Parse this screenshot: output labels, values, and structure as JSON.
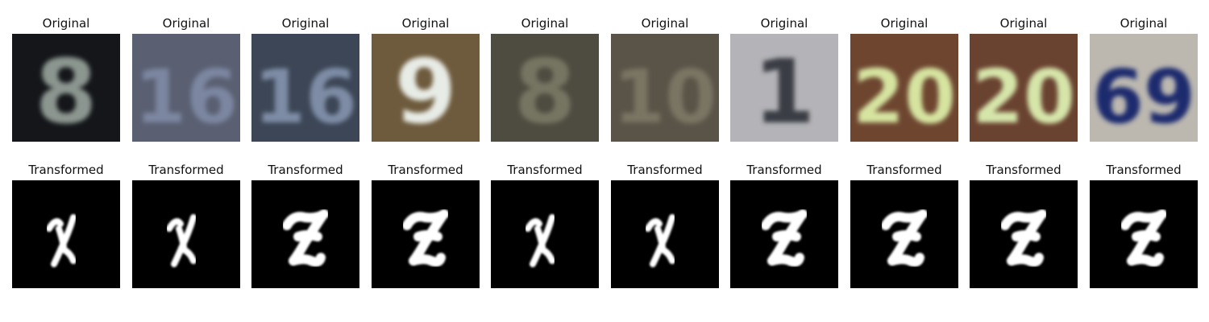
{
  "figure": {
    "original_label": "Original",
    "transformed_label": "Transformed",
    "samples": [
      {
        "original_digit": "8",
        "original_bg": "#14161a",
        "original_fg": "#8c9690",
        "transformed_label": "X"
      },
      {
        "original_digit": "16",
        "original_bg": "#5a6072",
        "original_fg": "#7c86a0",
        "transformed_label": "X"
      },
      {
        "original_digit": "16",
        "original_bg": "#3c4656",
        "original_fg": "#7e8ca6",
        "transformed_label": "Z"
      },
      {
        "original_digit": "9",
        "original_bg": "#6e5a3c",
        "original_fg": "#e8ece6",
        "transformed_label": "Z"
      },
      {
        "original_digit": "8",
        "original_bg": "#4e4c40",
        "original_fg": "#767462",
        "transformed_label": "X"
      },
      {
        "original_digit": "10",
        "original_bg": "#5a5448",
        "original_fg": "#7a7464",
        "transformed_label": "X"
      },
      {
        "original_digit": "1",
        "original_bg": "#b4b4b8",
        "original_fg": "#3a3c44",
        "transformed_label": "Z"
      },
      {
        "original_digit": "20",
        "original_bg": "#6e4630",
        "original_fg": "#d6e4a0",
        "transformed_label": "Z"
      },
      {
        "original_digit": "20",
        "original_bg": "#6a4230",
        "original_fg": "#d6e6aa",
        "transformed_label": "Z"
      },
      {
        "original_digit": "69",
        "original_bg": "#bcb8b0",
        "original_fg": "#1c2a6e",
        "transformed_label": "Z"
      }
    ]
  }
}
